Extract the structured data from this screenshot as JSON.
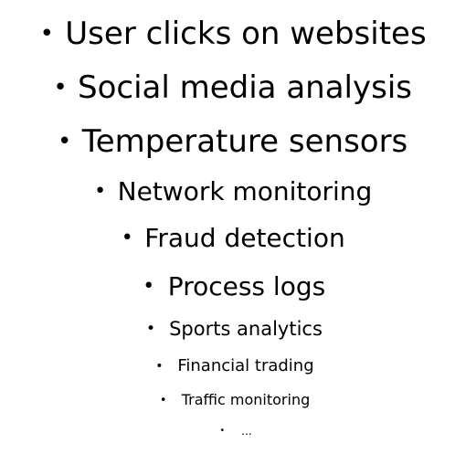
{
  "bullet_symbol": "•",
  "items": [
    {
      "label": "User clicks on websites"
    },
    {
      "label": "Social media analysis"
    },
    {
      "label": "Temperature sensors"
    },
    {
      "label": "Network monitoring"
    },
    {
      "label": "Fraud detection"
    },
    {
      "label": "Process logs"
    },
    {
      "label": "Sports analytics"
    },
    {
      "label": "Financial trading"
    },
    {
      "label": "Traffic monitoring"
    },
    {
      "label": "..."
    }
  ]
}
